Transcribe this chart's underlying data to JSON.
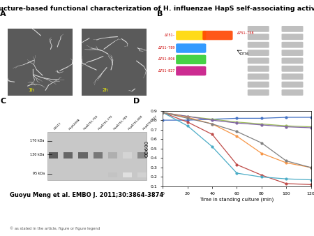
{
  "title": "Structure-based functional characterization of H. influenzae HapS self-associating activity.",
  "title_fontsize": 6.8,
  "citation": "Guoyu Meng et al. EMBO J. 2011;30:3864-3874",
  "copyright": "© as stated in the article, figure or figure legend",
  "panel_D": {
    "xlabel": "Time in standing culture (min)",
    "ylabel": "OD600",
    "xlim": [
      0,
      120
    ],
    "ylim": [
      0.1,
      0.9
    ],
    "yticks": [
      0.1,
      0.2,
      0.3,
      0.4,
      0.5,
      0.6,
      0.7,
      0.8,
      0.9
    ],
    "xticks": [
      0,
      20,
      40,
      60,
      80,
      100,
      120
    ],
    "x_data": [
      0,
      20,
      40,
      60,
      80,
      100,
      120
    ],
    "series": [
      {
        "name": "DB117",
        "color": "#4472C4",
        "data": [
          0.8,
          0.8,
          0.81,
          0.82,
          0.82,
          0.83,
          0.83
        ]
      },
      {
        "name": "HapS243A",
        "color": "#BE4B48",
        "data": [
          0.88,
          0.78,
          0.65,
          0.33,
          0.22,
          0.13,
          0.12
        ]
      },
      {
        "name": "Hap∆751-758",
        "color": "#9BBB59",
        "data": [
          0.88,
          0.84,
          0.81,
          0.78,
          0.76,
          0.74,
          0.73
        ]
      },
      {
        "name": "Hap∆751-770",
        "color": "#8064A2",
        "data": [
          0.88,
          0.84,
          0.8,
          0.77,
          0.75,
          0.73,
          0.72
        ]
      },
      {
        "name": "Hap∆751-789",
        "color": "#4BACC6",
        "data": [
          0.88,
          0.74,
          0.52,
          0.24,
          0.2,
          0.18,
          0.17
        ]
      },
      {
        "name": "Hap∆751-808",
        "color": "#F79646",
        "data": [
          0.88,
          0.83,
          0.76,
          0.63,
          0.45,
          0.35,
          0.3
        ]
      },
      {
        "name": "Hap∆751-827",
        "color": "#808080",
        "data": [
          0.88,
          0.82,
          0.76,
          0.68,
          0.56,
          0.37,
          0.3
        ]
      }
    ]
  },
  "embo_bg": "#2D6B2A",
  "embo_text_color": "#FFFFFF",
  "figure_bg": "#FFFFFF"
}
